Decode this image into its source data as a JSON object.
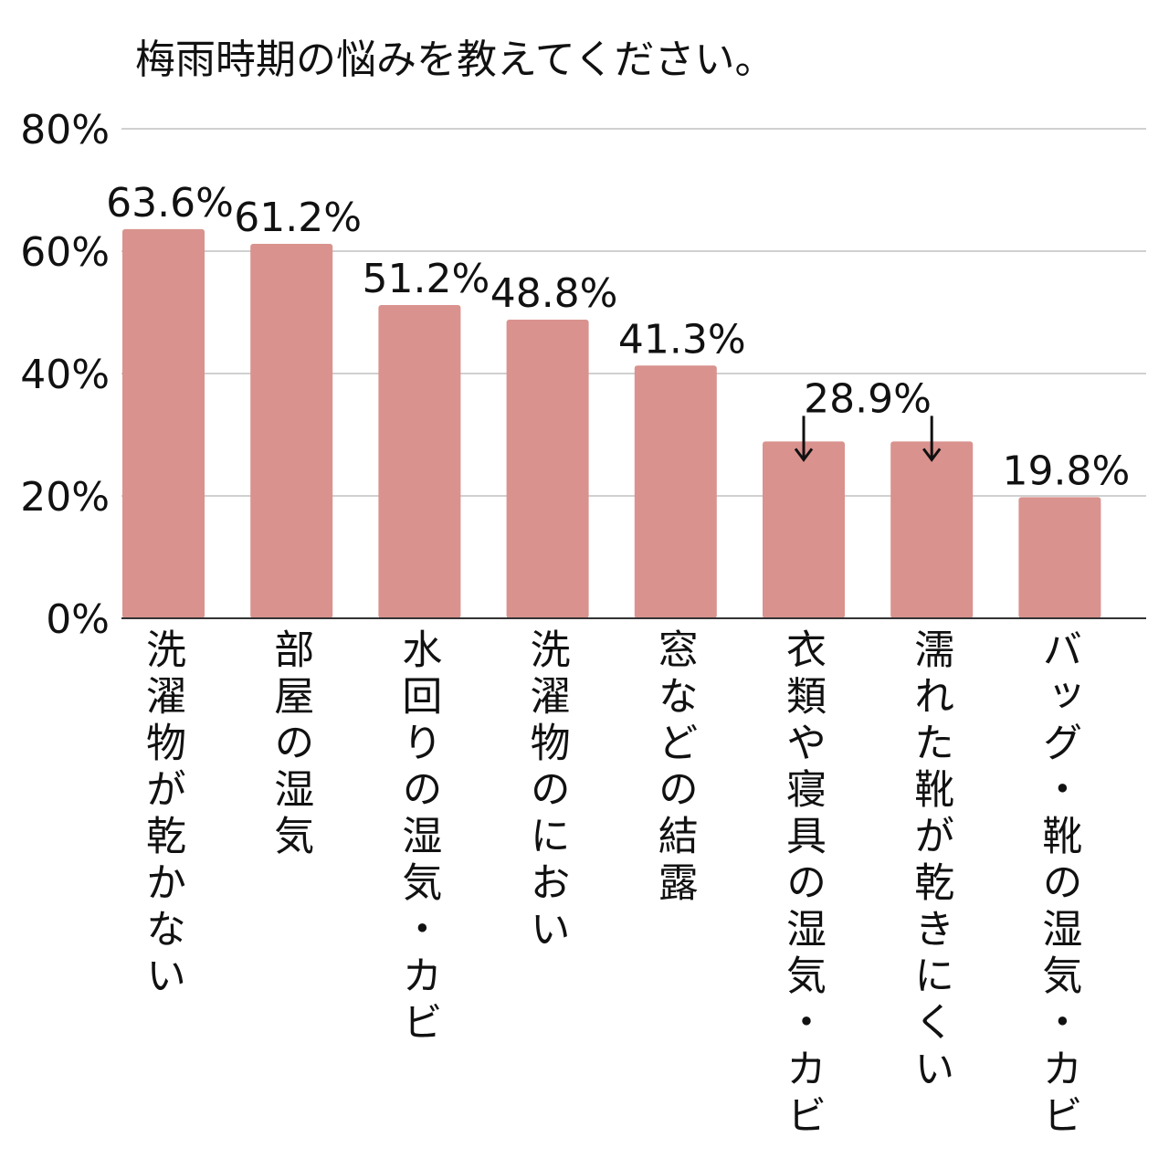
{
  "chart_data": {
    "type": "bar",
    "title": "梅雨時期の悩みを教えてください。",
    "categories": [
      "洗濯物が乾かない",
      "部屋の湿気",
      "水回りの湿気・カビ",
      "洗濯物のにおい",
      "窓などの結露",
      "衣類や寝具の湿気・カビ",
      "濡れた靴が乾きにくい",
      "バッグ・靴の湿気・カビ"
    ],
    "values": [
      63.6,
      61.2,
      51.2,
      48.8,
      41.3,
      28.9,
      28.9,
      19.8
    ],
    "value_labels": [
      "63.6%",
      "61.2%",
      "51.2%",
      "48.8%",
      "41.3%",
      "28.9%",
      "",
      "19.8%"
    ],
    "ylim": [
      0,
      80
    ],
    "yticks": [
      0,
      20,
      40,
      60,
      80
    ],
    "ytick_labels": [
      "0%",
      "20%",
      "40%",
      "60%",
      "80%"
    ],
    "grid": true,
    "legend": "none",
    "xlabel": "",
    "ylabel": "",
    "bar_color": "#d9928e",
    "grid_color": "#d0d0d0",
    "axis_color": "#333333"
  }
}
